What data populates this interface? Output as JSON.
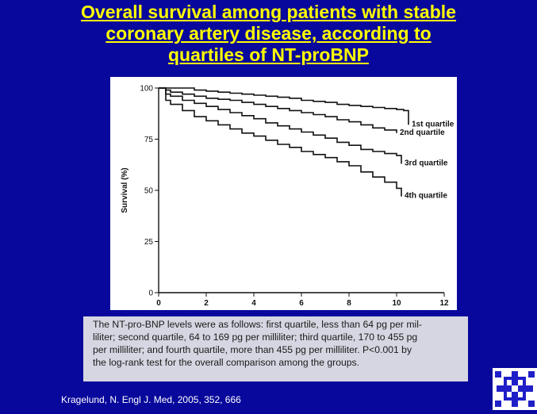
{
  "slide": {
    "title_lines": [
      "Overall survival among patients with stable",
      "coronary artery disease, according to",
      "quartiles of NT-proBNP"
    ],
    "caption_lines": [
      "The NT-pro-BNP levels were as follows: first quartile, less than 64 pg per mil-",
      "liliter; second quartile, 64 to 169 pg per milliliter; third quartile, 170 to 455 pg",
      "per milliliter; and fourth quartile, more than 455 pg per milliliter. P<0.001 by",
      "the log-rank test for the overall comparison among the groups."
    ],
    "citation": "Kragelund, N. Engl J. Med, 2005, 352, 666",
    "colors": {
      "background": "#08089c",
      "title": "#ffff00",
      "caption_bg": "#d6d6e2",
      "logo": "#1f1fc8"
    },
    "logo_icon": "institution-logo-icon"
  },
  "chart_data": {
    "type": "line",
    "title": "",
    "xlabel": "",
    "ylabel": "Survival (%)",
    "xlim": [
      0,
      12
    ],
    "ylim": [
      0,
      100
    ],
    "x_ticks": [
      0,
      2,
      4,
      6,
      8,
      10,
      12
    ],
    "y_ticks": [
      0,
      25,
      50,
      75,
      100
    ],
    "grid": false,
    "legend": "inline labels at line ends",
    "series": [
      {
        "name": "1st quartile",
        "x": [
          0,
          0.5,
          1,
          1.5,
          2,
          2.5,
          3,
          3.5,
          4,
          4.5,
          5,
          5.5,
          6,
          6.5,
          7,
          7.5,
          8,
          8.5,
          9,
          9.5,
          10,
          10.3,
          10.5
        ],
        "y": [
          100,
          100,
          100,
          99,
          98.5,
          98,
          97.5,
          97,
          96.5,
          96,
          95.5,
          95,
          94,
          93.5,
          93,
          92,
          91.5,
          91,
          90.5,
          90,
          89.5,
          89,
          82
        ]
      },
      {
        "name": "2nd quartile",
        "x": [
          0,
          0.3,
          0.5,
          1,
          1.5,
          2,
          2.5,
          3,
          3.5,
          4,
          4.5,
          5,
          5.5,
          6,
          6.5,
          7,
          7.5,
          8,
          8.5,
          9,
          9.5,
          10
        ],
        "y": [
          100,
          99,
          98,
          97,
          96,
          95,
          94.5,
          94,
          93,
          92,
          91,
          90,
          89,
          88,
          87,
          86,
          84.5,
          83.5,
          82,
          80.5,
          79.5,
          78
        ]
      },
      {
        "name": "3rd quartile",
        "x": [
          0,
          0.3,
          0.5,
          1,
          1.5,
          2,
          2.5,
          3,
          3.5,
          4,
          4.5,
          5,
          5.5,
          6,
          6.5,
          7,
          7.5,
          8,
          8.5,
          9,
          9.5,
          10,
          10.2
        ],
        "y": [
          100,
          97,
          96,
          94,
          92.5,
          91,
          89.5,
          88,
          86.5,
          85,
          83,
          81.5,
          80,
          78.5,
          77,
          75.5,
          73.5,
          72,
          70,
          69,
          68,
          67,
          63
        ]
      },
      {
        "name": "4th quartile",
        "x": [
          0,
          0.3,
          0.5,
          1,
          1.5,
          2,
          2.5,
          3,
          3.5,
          4,
          4.5,
          5,
          5.5,
          6,
          6.5,
          7,
          7.5,
          8,
          8.5,
          9,
          9.5,
          10,
          10.2
        ],
        "y": [
          100,
          94,
          92,
          89,
          86,
          84,
          82,
          80,
          78,
          76.5,
          74.5,
          72.5,
          71,
          69,
          67.5,
          66,
          64,
          62,
          59,
          56.5,
          54,
          51,
          47
        ]
      }
    ]
  }
}
